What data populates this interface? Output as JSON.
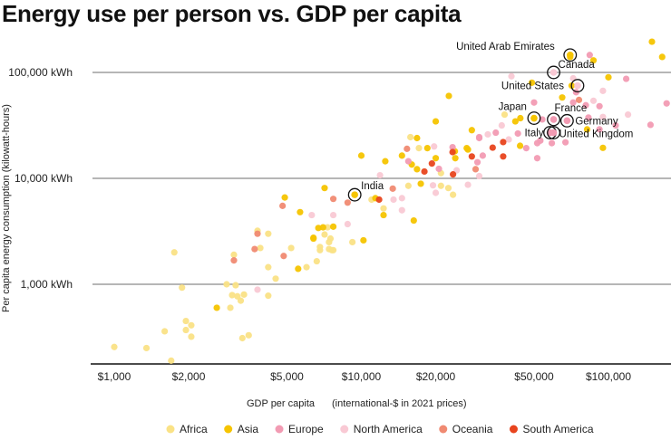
{
  "chart_data": {
    "type": "scatter",
    "title": "Energy use per person vs. GDP per capita",
    "xlabel": "GDP per capita",
    "xlabel_note": "(international-$ in 2021 prices)",
    "ylabel": "Per capita energy consumption (kilowatt-hours)",
    "x_scale": "log",
    "y_scale": "log",
    "xlim": [
      800,
      180000
    ],
    "ylim": [
      177,
      220000
    ],
    "grid": "horizontal",
    "legend_position": "bottom",
    "x_ticks": [
      {
        "value": 1000,
        "label": "$1,000"
      },
      {
        "value": 2000,
        "label": "$2,000"
      },
      {
        "value": 5000,
        "label": "$5,000"
      },
      {
        "value": 10000,
        "label": "$10,000"
      },
      {
        "value": 20000,
        "label": "$20,000"
      },
      {
        "value": 50000,
        "label": "$50,000"
      },
      {
        "value": 100000,
        "label": "$100,000"
      }
    ],
    "y_ticks": [
      {
        "value": 1000,
        "label": "1,000 kWh"
      },
      {
        "value": 10000,
        "label": "10,000 kWh"
      },
      {
        "value": 100000,
        "label": "100,000 kWh"
      }
    ],
    "series": [
      {
        "name": "Africa",
        "color": "#fae286",
        "points": [
          [
            1000,
            256
          ],
          [
            1350,
            250
          ],
          [
            1600,
            360
          ],
          [
            1700,
            190
          ],
          [
            1750,
            2000
          ],
          [
            1880,
            930
          ],
          [
            1950,
            450
          ],
          [
            1950,
            370
          ],
          [
            2050,
            410
          ],
          [
            2050,
            320
          ],
          [
            2850,
            1000
          ],
          [
            2950,
            600
          ],
          [
            3000,
            790
          ],
          [
            3100,
            980
          ],
          [
            3150,
            770
          ],
          [
            3250,
            700
          ],
          [
            3350,
            800
          ],
          [
            3300,
            310
          ],
          [
            3500,
            330
          ],
          [
            3050,
            1900
          ],
          [
            3800,
            3200
          ],
          [
            3900,
            2200
          ],
          [
            4200,
            3000
          ],
          [
            4200,
            1450
          ],
          [
            4500,
            1130
          ],
          [
            4200,
            780
          ],
          [
            5200,
            2200
          ],
          [
            6000,
            1450
          ],
          [
            6600,
            1650
          ],
          [
            6800,
            2100
          ],
          [
            7400,
            2150
          ],
          [
            7500,
            2700
          ],
          [
            7300,
            3450
          ],
          [
            7100,
            2950
          ],
          [
            7400,
            2500
          ],
          [
            9200,
            2500
          ],
          [
            7600,
            2100
          ],
          [
            7700,
            2100
          ],
          [
            6800,
            2250
          ],
          [
            15800,
            24500
          ],
          [
            17100,
            19300
          ],
          [
            21000,
            11200
          ],
          [
            15500,
            8500
          ],
          [
            21000,
            8500
          ],
          [
            22500,
            8100
          ],
          [
            23500,
            7000
          ],
          [
            11000,
            6300
          ],
          [
            12300,
            5200
          ],
          [
            38000,
            40000
          ]
        ]
      },
      {
        "name": "Asia",
        "color": "#f6c400",
        "points": [
          [
            2600,
            600
          ],
          [
            5550,
            1400
          ],
          [
            6400,
            2750
          ],
          [
            6700,
            3400
          ],
          [
            7000,
            3450
          ],
          [
            7700,
            3500
          ],
          [
            6400,
            2700
          ],
          [
            10200,
            2600
          ],
          [
            4900,
            6600
          ],
          [
            5650,
            4800
          ],
          [
            7100,
            8100
          ],
          [
            11400,
            6500
          ],
          [
            12300,
            4500
          ],
          [
            16300,
            4000
          ],
          [
            17400,
            8900
          ],
          [
            10000,
            16400
          ],
          [
            12500,
            14500
          ],
          [
            16000,
            13500
          ],
          [
            20000,
            15500
          ],
          [
            16800,
            12200
          ],
          [
            14600,
            16400
          ],
          [
            16800,
            24000
          ],
          [
            18500,
            19300
          ],
          [
            26700,
            19300
          ],
          [
            23900,
            18000
          ],
          [
            28000,
            28500
          ],
          [
            20000,
            34500
          ],
          [
            22600,
            60000
          ],
          [
            44000,
            37000
          ],
          [
            42000,
            34500
          ],
          [
            82000,
            29000
          ],
          [
            95000,
            19400
          ],
          [
            43900,
            20300
          ],
          [
            27000,
            18700
          ],
          [
            65000,
            58000
          ],
          [
            71000,
            75000
          ],
          [
            49000,
            80000
          ],
          [
            100000,
            90000
          ],
          [
            70000,
            140000
          ],
          [
            87000,
            130000
          ],
          [
            150000,
            195000
          ],
          [
            165000,
            140000
          ],
          [
            24000,
            15500
          ]
        ]
      },
      {
        "name": "Europe",
        "color": "#f29bb3",
        "points": [
          [
            30000,
            24000
          ],
          [
            35000,
            27000
          ],
          [
            23400,
            19700
          ],
          [
            15500,
            14500
          ],
          [
            31000,
            16400
          ],
          [
            29500,
            14200
          ],
          [
            20600,
            12300
          ],
          [
            84000,
            146000
          ],
          [
            118000,
            87000
          ],
          [
            74000,
            65000
          ],
          [
            50000,
            52000
          ],
          [
            72000,
            52000
          ],
          [
            81000,
            49000
          ],
          [
            92000,
            48000
          ],
          [
            172000,
            51000
          ],
          [
            83000,
            37500
          ],
          [
            54000,
            36000
          ],
          [
            43000,
            26500
          ],
          [
            92000,
            29000
          ],
          [
            107000,
            31600
          ],
          [
            148000,
            32000
          ],
          [
            30000,
            24500
          ],
          [
            46500,
            19300
          ],
          [
            51500,
            21500
          ],
          [
            53000,
            22700
          ],
          [
            59000,
            21500
          ],
          [
            67000,
            21900
          ],
          [
            51500,
            15500
          ]
        ]
      },
      {
        "name": "North America",
        "color": "#f9c9d4",
        "points": [
          [
            3800,
            890
          ],
          [
            6300,
            4500
          ],
          [
            32500,
            26000
          ],
          [
            19700,
            20000
          ],
          [
            11900,
            10700
          ],
          [
            24300,
            11900
          ],
          [
            27000,
            8700
          ],
          [
            30000,
            10500
          ],
          [
            19500,
            8600
          ],
          [
            20000,
            7300
          ],
          [
            13500,
            6300
          ],
          [
            14600,
            6500
          ],
          [
            14600,
            5000
          ],
          [
            7700,
            4500
          ],
          [
            8800,
            3700
          ],
          [
            40500,
            92000
          ],
          [
            72000,
            88000
          ],
          [
            95000,
            67000
          ],
          [
            87000,
            54000
          ],
          [
            120000,
            40000
          ],
          [
            95000,
            38000
          ],
          [
            37000,
            31600
          ],
          [
            39500,
            23300
          ]
        ]
      },
      {
        "name": "Oceania",
        "color": "#f08a72",
        "points": [
          [
            3050,
            1680
          ],
          [
            3800,
            3000
          ],
          [
            3700,
            2150
          ],
          [
            4850,
            1850
          ],
          [
            15300,
            19000
          ],
          [
            29000,
            12200
          ],
          [
            13400,
            8000
          ],
          [
            7700,
            6400
          ],
          [
            8800,
            5900
          ],
          [
            4800,
            5500
          ],
          [
            76000,
            55000
          ]
        ]
      },
      {
        "name": "South America",
        "color": "#e8441e",
        "points": [
          [
            23400,
            17700
          ],
          [
            28000,
            16100
          ],
          [
            34000,
            19500
          ],
          [
            19300,
            13800
          ],
          [
            18000,
            11600
          ],
          [
            23500,
            10900
          ],
          [
            11800,
            6300
          ],
          [
            37500,
            22000
          ],
          [
            37500,
            16100
          ]
        ]
      }
    ],
    "annotations": [
      {
        "label": "United Arab Emirates",
        "region": "Asia",
        "x": 70000,
        "y": 146000
      },
      {
        "label": "Canada",
        "region": "North America",
        "x": 60000,
        "y": 100000
      },
      {
        "label": "United States",
        "region": "North America",
        "x": 75000,
        "y": 75000
      },
      {
        "label": "Japan",
        "region": "Asia",
        "x": 50000,
        "y": 37000
      },
      {
        "label": "France",
        "region": "Europe",
        "x": 60000,
        "y": 36000
      },
      {
        "label": "Germany",
        "region": "Europe",
        "x": 68000,
        "y": 35000
      },
      {
        "label": "Italy",
        "region": "Europe",
        "x": 58000,
        "y": 27000
      },
      {
        "label": "United Kingdom",
        "region": "Europe",
        "x": 60000,
        "y": 27000
      },
      {
        "label": "India",
        "region": "Asia",
        "x": 9400,
        "y": 7000
      }
    ]
  }
}
